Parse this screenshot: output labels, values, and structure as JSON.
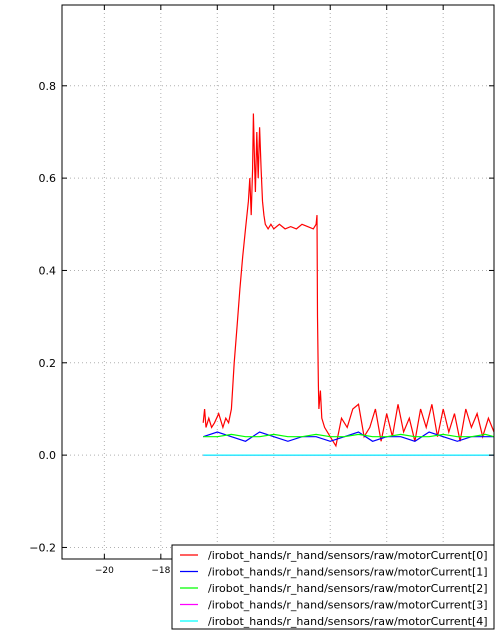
{
  "chart_data": {
    "type": "line",
    "title": "",
    "xlabel": "",
    "ylabel": "",
    "xlim": [
      -21.5,
      -6.2
    ],
    "ylim": [
      -0.225,
      0.975
    ],
    "grid": true,
    "legend_position": "lower-right",
    "yticks": [
      -0.2,
      0.0,
      0.2,
      0.4,
      0.6,
      0.8
    ],
    "ytick_labels": [
      "−0.2",
      "0.0",
      "0.2",
      "0.4",
      "0.6",
      "0.8"
    ],
    "xticks": [
      -20,
      -18,
      -16,
      -14,
      -12,
      -10,
      -8
    ],
    "xtick_labels": [
      "−20",
      "−18",
      "",
      "",
      "",
      "",
      ""
    ],
    "series": [
      {
        "name": "/irobot_hands/r_hand/sensors/raw/motorCurrent[0]",
        "color": "#ff0000",
        "x": [
          -16.5,
          -16.45,
          -16.4,
          -16.3,
          -16.2,
          -16.1,
          -15.95,
          -15.8,
          -15.7,
          -15.6,
          -15.5,
          -15.4,
          -15.3,
          -15.2,
          -15.1,
          -15.0,
          -14.9,
          -14.85,
          -14.8,
          -14.75,
          -14.72,
          -14.68,
          -14.65,
          -14.6,
          -14.55,
          -14.5,
          -14.45,
          -14.4,
          -14.35,
          -14.3,
          -14.2,
          -14.1,
          -14.0,
          -13.8,
          -13.6,
          -13.4,
          -13.2,
          -13.0,
          -12.8,
          -12.6,
          -12.5,
          -12.47,
          -12.45,
          -12.42,
          -12.4,
          -12.35,
          -12.3,
          -12.2,
          -12.0,
          -11.8,
          -11.6,
          -11.4,
          -11.2,
          -11.0,
          -10.8,
          -10.6,
          -10.4,
          -10.2,
          -10.0,
          -9.8,
          -9.6,
          -9.4,
          -9.2,
          -9.0,
          -8.8,
          -8.6,
          -8.4,
          -8.2,
          -8.0,
          -7.8,
          -7.6,
          -7.4,
          -7.2,
          -7.0,
          -6.8,
          -6.6,
          -6.4,
          -6.2
        ],
        "y": [
          0.07,
          0.1,
          0.06,
          0.08,
          0.06,
          0.07,
          0.09,
          0.06,
          0.08,
          0.07,
          0.1,
          0.2,
          0.28,
          0.36,
          0.43,
          0.49,
          0.55,
          0.6,
          0.52,
          0.62,
          0.74,
          0.63,
          0.57,
          0.7,
          0.6,
          0.71,
          0.62,
          0.55,
          0.52,
          0.5,
          0.49,
          0.5,
          0.49,
          0.5,
          0.49,
          0.495,
          0.49,
          0.5,
          0.495,
          0.49,
          0.5,
          0.52,
          0.3,
          0.15,
          0.1,
          0.14,
          0.08,
          0.06,
          0.04,
          0.02,
          0.08,
          0.06,
          0.1,
          0.11,
          0.04,
          0.06,
          0.1,
          0.03,
          0.09,
          0.04,
          0.11,
          0.05,
          0.08,
          0.03,
          0.1,
          0.06,
          0.11,
          0.04,
          0.1,
          0.05,
          0.09,
          0.03,
          0.1,
          0.06,
          0.09,
          0.04,
          0.08,
          0.05
        ]
      },
      {
        "name": "/irobot_hands/r_hand/sensors/raw/motorCurrent[1]",
        "color": "#0000ff",
        "x": [
          -16.5,
          -16.0,
          -15.5,
          -15.0,
          -14.5,
          -14.0,
          -13.5,
          -13.0,
          -12.5,
          -12.0,
          -11.5,
          -11.0,
          -10.5,
          -10.0,
          -9.5,
          -9.0,
          -8.5,
          -8.0,
          -7.5,
          -7.0,
          -6.5,
          -6.2
        ],
        "y": [
          0.04,
          0.05,
          0.04,
          0.03,
          0.05,
          0.04,
          0.03,
          0.04,
          0.04,
          0.03,
          0.04,
          0.05,
          0.03,
          0.04,
          0.04,
          0.03,
          0.05,
          0.04,
          0.03,
          0.04,
          0.04,
          0.04
        ]
      },
      {
        "name": "/irobot_hands/r_hand/sensors/raw/motorCurrent[2]",
        "color": "#00ff00",
        "x": [
          -16.5,
          -16.0,
          -15.5,
          -15.0,
          -14.5,
          -14.0,
          -13.5,
          -13.0,
          -12.5,
          -12.0,
          -11.5,
          -11.0,
          -10.5,
          -10.0,
          -9.5,
          -9.0,
          -8.5,
          -8.0,
          -7.5,
          -7.0,
          -6.5,
          -6.2
        ],
        "y": [
          0.04,
          0.04,
          0.045,
          0.04,
          0.04,
          0.045,
          0.04,
          0.04,
          0.045,
          0.04,
          0.04,
          0.045,
          0.04,
          0.04,
          0.045,
          0.04,
          0.04,
          0.045,
          0.04,
          0.04,
          0.045,
          0.04
        ]
      },
      {
        "name": "/irobot_hands/r_hand/sensors/raw/motorCurrent[3]",
        "color": "#ff00ff",
        "x": [
          -16.5,
          -6.2
        ],
        "y": [
          0.0,
          0.0
        ]
      },
      {
        "name": "/irobot_hands/r_hand/sensors/raw/motorCurrent[4]",
        "color": "#00ffff",
        "x": [
          -16.5,
          -6.2
        ],
        "y": [
          0.0,
          0.0
        ]
      }
    ]
  }
}
